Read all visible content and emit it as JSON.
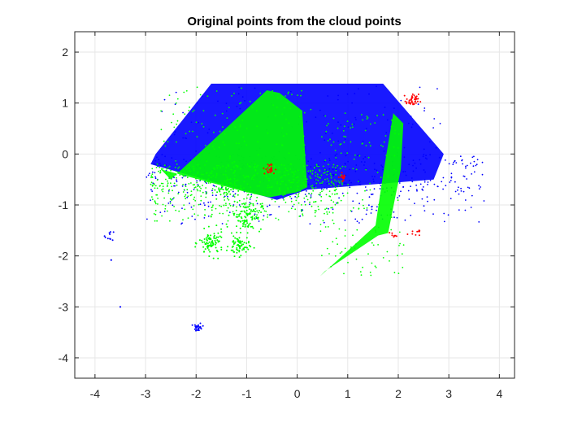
{
  "chart_data": {
    "type": "scatter",
    "title": "Original points from the cloud points",
    "xlabel": "",
    "ylabel": "",
    "xlim": [
      -4.4,
      4.3
    ],
    "ylim": [
      -4.4,
      2.4
    ],
    "xticks": [
      -4,
      -3,
      -2,
      -1,
      0,
      1,
      2,
      3,
      4
    ],
    "yticks": [
      -4,
      -3,
      -2,
      -1,
      0,
      1,
      2
    ],
    "grid": true,
    "legend": "none",
    "series": [
      {
        "color": "#0000ff",
        "regions": [
          {
            "shape": "polygon",
            "points": [
              [
                -1.7,
                1.38
              ],
              [
                1.7,
                1.38
              ],
              [
                2.9,
                0.0
              ],
              [
                2.7,
                -0.5
              ],
              [
                0.2,
                -0.7
              ],
              [
                -0.4,
                -0.9
              ],
              [
                -2.9,
                -0.2
              ],
              [
                -2.8,
                0.0
              ]
            ],
            "density": 0.9
          },
          {
            "shape": "scatter-box",
            "x": [
              -3.0,
              3.7
            ],
            "y": [
              -1.4,
              0.0
            ],
            "count": 420
          },
          {
            "shape": "cluster",
            "x": -1.96,
            "y": -3.4,
            "spread": 0.04,
            "count": 30
          },
          {
            "shape": "cluster",
            "x": -3.7,
            "y": -1.6,
            "spread": 0.05,
            "count": 10
          },
          {
            "shape": "point",
            "x": -3.5,
            "y": -3.0
          },
          {
            "shape": "point",
            "x": -3.68,
            "y": -2.08
          }
        ]
      },
      {
        "color": "#00ff00",
        "regions": [
          {
            "shape": "polygon",
            "points": [
              [
                -2.5,
                -0.5
              ],
              [
                -0.6,
                1.25
              ],
              [
                -0.35,
                1.2
              ],
              [
                0.1,
                0.85
              ],
              [
                0.2,
                -0.65
              ],
              [
                0.0,
                -0.75
              ],
              [
                -0.55,
                -0.85
              ],
              [
                -1.0,
                -0.75
              ],
              [
                -2.7,
                -0.3
              ]
            ],
            "density": 0.9
          },
          {
            "shape": "polygon",
            "points": [
              [
                0.55,
                -2.3
              ],
              [
                1.6,
                -1.6
              ],
              [
                1.8,
                -1.55
              ],
              [
                2.05,
                -0.3
              ],
              [
                2.1,
                0.6
              ],
              [
                1.9,
                0.8
              ],
              [
                1.7,
                -0.4
              ],
              [
                1.55,
                -1.4
              ],
              [
                0.45,
                -2.4
              ]
            ],
            "density": 0.9
          },
          {
            "shape": "scatter-box",
            "x": [
              -2.9,
              0.9
            ],
            "y": [
              -1.35,
              -0.2
            ],
            "count": 520
          },
          {
            "shape": "cluster",
            "x": -1.7,
            "y": -1.75,
            "spread": 0.12,
            "count": 90
          },
          {
            "shape": "cluster",
            "x": -1.15,
            "y": -1.8,
            "spread": 0.1,
            "count": 70
          },
          {
            "shape": "cluster",
            "x": -1.0,
            "y": -1.2,
            "spread": 0.15,
            "count": 110
          },
          {
            "shape": "cluster",
            "x": -1.45,
            "y": -0.7,
            "spread": 0.1,
            "count": 40
          }
        ]
      },
      {
        "color": "#ff0000",
        "regions": [
          {
            "shape": "cluster",
            "x": 2.28,
            "y": 1.05,
            "spread": 0.06,
            "count": 40
          },
          {
            "shape": "cluster",
            "x": -0.55,
            "y": -0.3,
            "spread": 0.06,
            "count": 25
          },
          {
            "shape": "cluster",
            "x": 0.92,
            "y": -0.45,
            "spread": 0.04,
            "count": 15
          },
          {
            "shape": "cluster",
            "x": 1.9,
            "y": -1.6,
            "spread": 0.03,
            "count": 8
          },
          {
            "shape": "cluster",
            "x": 2.35,
            "y": -1.5,
            "spread": 0.05,
            "count": 10
          }
        ]
      }
    ]
  }
}
